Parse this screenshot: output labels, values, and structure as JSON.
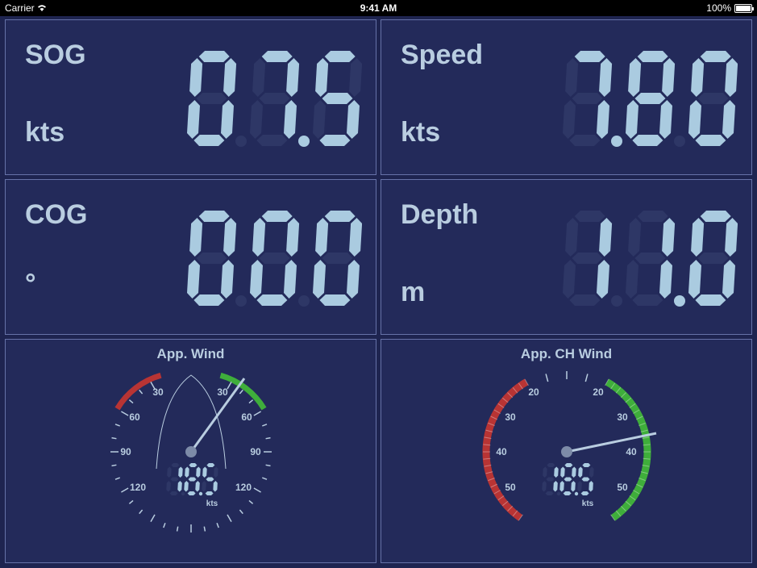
{
  "status_bar": {
    "carrier": "Carrier",
    "time": "9:41 AM",
    "battery": "100%"
  },
  "colors": {
    "background": "#1e2450",
    "panel": "#232a5a",
    "border": "#6672a8",
    "text": "#b9cde0",
    "digit_on": "#aacbe0",
    "digit_off": "#2e3766",
    "red": "#b83434",
    "green": "#3fae3b"
  },
  "panels": {
    "sog": {
      "label": "SOG",
      "unit": "kts",
      "digits": "07.5",
      "faint_digits": "08.8"
    },
    "speed": {
      "label": "Speed",
      "unit": "kts",
      "digits": "7.80",
      "faint_digits": "88.80"
    },
    "cog": {
      "label": "COG",
      "unit": "°",
      "digits": "000",
      "faint_digits": "888"
    },
    "depth": {
      "label": "Depth",
      "unit": "m",
      "digits": "11.0",
      "faint_digits": "88.0"
    }
  },
  "gauges": {
    "app_wind": {
      "title": "App. Wind",
      "value": "18.5",
      "unit": "kts",
      "scale_labels": [
        "30",
        "60",
        "90",
        "120",
        "30",
        "60",
        "90",
        "120"
      ]
    },
    "app_ch_wind": {
      "title": "App. CH Wind",
      "value": "18.5",
      "unit": "kts",
      "scale_labels": [
        "20",
        "30",
        "40",
        "50",
        "20",
        "30",
        "40",
        "50"
      ]
    }
  }
}
